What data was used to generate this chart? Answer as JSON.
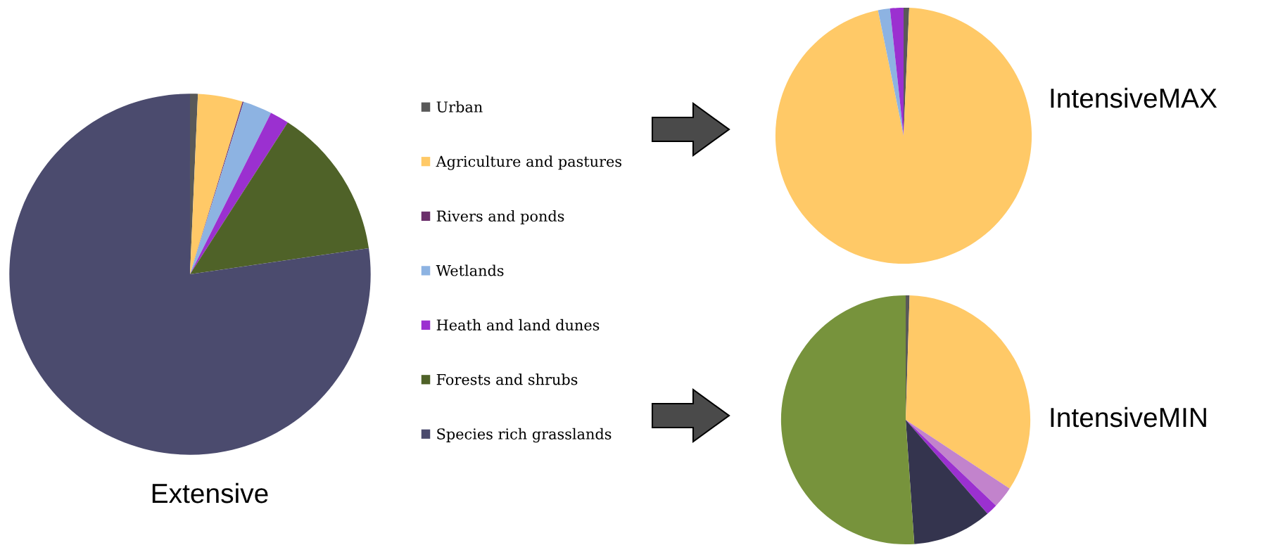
{
  "chart_data": [
    {
      "type": "pie",
      "title": "Extensive",
      "legend": "right",
      "categories": [
        "Urban",
        "Agriculture and pastures",
        "Rivers and ponds",
        "Wetlands",
        "Heath and land dunes",
        "Forests and shrubs",
        "Species rich grasslands"
      ],
      "values": [
        0.7,
        4.0,
        0.1,
        2.6,
        1.7,
        13.6,
        77.3
      ],
      "colors": [
        "#595959",
        "#ffc967",
        "#6b2f6b",
        "#8db3e2",
        "#9b30d0",
        "#4f6228",
        "#4b4b6e"
      ]
    },
    {
      "type": "pie",
      "title": "IntensiveMAX",
      "categories": [
        null,
        null,
        null,
        null,
        null,
        null,
        null
      ],
      "values": [
        0.7,
        96.1,
        0,
        1.5,
        1.7,
        0,
        0
      ],
      "colors": [
        "#595959",
        "#ffc967",
        "#6b2f6b",
        "#8db3e2",
        "#9b30d0",
        "#4f6228",
        "#4b4b6e"
      ]
    },
    {
      "type": "pie",
      "title": "IntensiveMIN",
      "categories": [
        null,
        null,
        null,
        null,
        null,
        null,
        null
      ],
      "values": [
        0.5,
        33.8,
        0,
        2.8,
        1.5,
        10.3,
        51.1
      ],
      "colors": [
        "#595959",
        "#ffc967",
        "#6b2f6b",
        "#c283cc",
        "#9b30d0",
        "#34344e",
        "#77933c"
      ]
    }
  ]
}
